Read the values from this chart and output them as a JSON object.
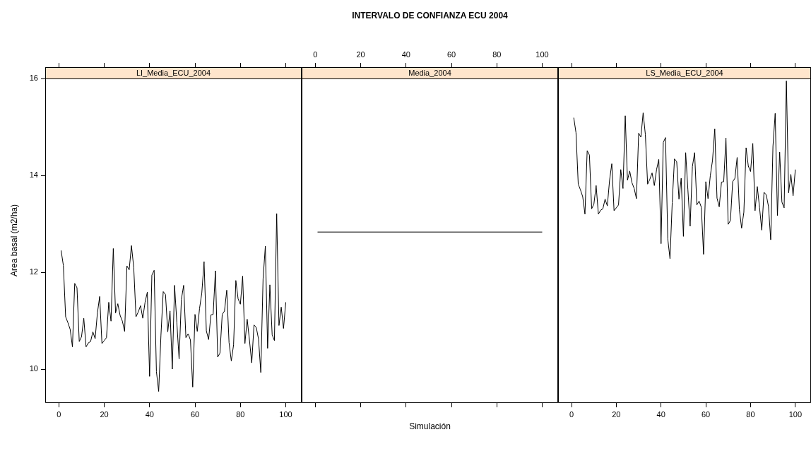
{
  "chart_data": [
    {
      "type": "line",
      "title": "LI_Media_ECU_2004",
      "ylabel": "Area basal (m2/ha)",
      "color": "#000000",
      "grid": false,
      "xlim": [
        -6,
        107
      ],
      "xticks": [
        0,
        20,
        40,
        60,
        80,
        100
      ],
      "ylim": [
        9.3,
        16.0
      ],
      "yticks": [
        10,
        12,
        14,
        16
      ],
      "x": [
        1,
        2,
        3,
        4,
        5,
        6,
        7,
        8,
        9,
        10,
        11,
        12,
        13,
        14,
        15,
        16,
        17,
        18,
        19,
        20,
        21,
        22,
        23,
        24,
        25,
        26,
        27,
        28,
        29,
        30,
        31,
        32,
        33,
        34,
        35,
        36,
        37,
        38,
        39,
        40,
        41,
        42,
        43,
        44,
        45,
        46,
        47,
        48,
        49,
        50,
        51,
        52,
        53,
        54,
        55,
        56,
        57,
        58,
        59,
        60,
        61,
        62,
        63,
        64,
        65,
        66,
        67,
        68,
        69,
        70,
        71,
        72,
        73,
        74,
        75,
        76,
        77,
        78,
        79,
        80,
        81,
        82,
        83,
        84,
        85,
        86,
        87,
        88,
        89,
        90,
        91,
        92,
        93,
        94,
        95,
        96,
        97,
        98,
        99,
        100
      ],
      "values": [
        12.45,
        12.14,
        11.08,
        10.96,
        10.82,
        10.46,
        11.77,
        11.68,
        10.57,
        10.67,
        11.05,
        10.46,
        10.54,
        10.57,
        10.77,
        10.63,
        11.16,
        11.5,
        10.53,
        10.59,
        10.65,
        11.38,
        10.99,
        12.49,
        11.16,
        11.35,
        11.11,
        10.99,
        10.78,
        12.13,
        12.05,
        12.55,
        12.1,
        11.08,
        11.18,
        11.31,
        11.05,
        11.38,
        11.59,
        9.85,
        11.94,
        12.04,
        9.95,
        9.54,
        10.7,
        11.6,
        11.54,
        10.77,
        11.2,
        10.0,
        11.73,
        10.96,
        10.21,
        11.44,
        11.73,
        10.65,
        10.73,
        10.6,
        9.63,
        11.13,
        10.78,
        11.25,
        11.57,
        12.22,
        10.79,
        10.61,
        11.12,
        11.13,
        12.03,
        10.25,
        10.33,
        11.13,
        11.2,
        11.63,
        10.55,
        10.17,
        10.5,
        11.83,
        11.45,
        11.34,
        11.92,
        10.53,
        11.03,
        10.6,
        10.13,
        10.91,
        10.86,
        10.62,
        9.93,
        11.86,
        12.54,
        10.43,
        11.74,
        10.71,
        10.59,
        13.21,
        10.9,
        11.28,
        10.84,
        11.38
      ]
    },
    {
      "type": "line",
      "title": "Media_2004",
      "xlabel": "Simulación",
      "annotations": [
        "INTERVALO DE CONFIANZA ECU 2004"
      ],
      "color": "#000000",
      "grid": false,
      "tick_labels": "x",
      "xlim": [
        -6,
        107
      ],
      "xticks": [
        0,
        20,
        40,
        60,
        80,
        100
      ],
      "ylim": [
        9.3,
        16.0
      ],
      "yticks": [
        10,
        12,
        14,
        16
      ],
      "x": [
        1,
        100
      ],
      "values": [
        12.83,
        12.83
      ]
    },
    {
      "type": "line",
      "title": "LS_Media_ECU_2004",
      "color": "#000000",
      "grid": false,
      "tick_labels": "x",
      "xlim": [
        -6,
        107
      ],
      "xticks": [
        0,
        20,
        40,
        60,
        80,
        100
      ],
      "ylim": [
        9.3,
        16.0
      ],
      "yticks": [
        10,
        12,
        14,
        16
      ],
      "x": [
        1,
        2,
        3,
        4,
        5,
        6,
        7,
        8,
        9,
        10,
        11,
        12,
        13,
        14,
        15,
        16,
        17,
        18,
        19,
        20,
        21,
        22,
        23,
        24,
        25,
        26,
        27,
        28,
        29,
        30,
        31,
        32,
        33,
        34,
        35,
        36,
        37,
        38,
        39,
        40,
        41,
        42,
        43,
        44,
        45,
        46,
        47,
        48,
        49,
        50,
        51,
        52,
        53,
        54,
        55,
        56,
        57,
        58,
        59,
        60,
        61,
        62,
        63,
        64,
        65,
        66,
        67,
        68,
        69,
        70,
        71,
        72,
        73,
        74,
        75,
        76,
        77,
        78,
        79,
        80,
        81,
        82,
        83,
        84,
        85,
        86,
        87,
        88,
        89,
        90,
        91,
        92,
        93,
        94,
        95,
        96,
        97,
        98,
        99,
        100
      ],
      "values": [
        15.19,
        14.88,
        13.82,
        13.7,
        13.56,
        13.2,
        14.51,
        14.42,
        13.31,
        13.41,
        13.79,
        13.2,
        13.28,
        13.31,
        13.51,
        13.37,
        13.9,
        14.24,
        13.27,
        13.33,
        13.39,
        14.12,
        13.73,
        15.23,
        13.9,
        14.09,
        13.85,
        13.73,
        13.52,
        14.87,
        14.79,
        15.29,
        14.84,
        13.82,
        13.92,
        14.05,
        13.79,
        14.12,
        14.33,
        12.59,
        14.68,
        14.78,
        12.69,
        12.28,
        13.44,
        14.34,
        14.28,
        13.51,
        13.94,
        12.74,
        14.47,
        13.7,
        12.95,
        14.18,
        14.47,
        13.39,
        13.47,
        13.34,
        12.37,
        13.87,
        13.52,
        13.99,
        14.31,
        14.96,
        13.53,
        13.35,
        13.86,
        13.87,
        14.77,
        12.99,
        13.07,
        13.87,
        13.94,
        14.37,
        13.29,
        12.91,
        13.24,
        14.57,
        14.19,
        14.08,
        14.66,
        13.27,
        13.77,
        13.34,
        12.87,
        13.65,
        13.6,
        13.36,
        12.67,
        14.6,
        15.28,
        13.17,
        14.48,
        13.45,
        13.33,
        15.95,
        13.64,
        14.02,
        13.58,
        14.12
      ]
    }
  ]
}
